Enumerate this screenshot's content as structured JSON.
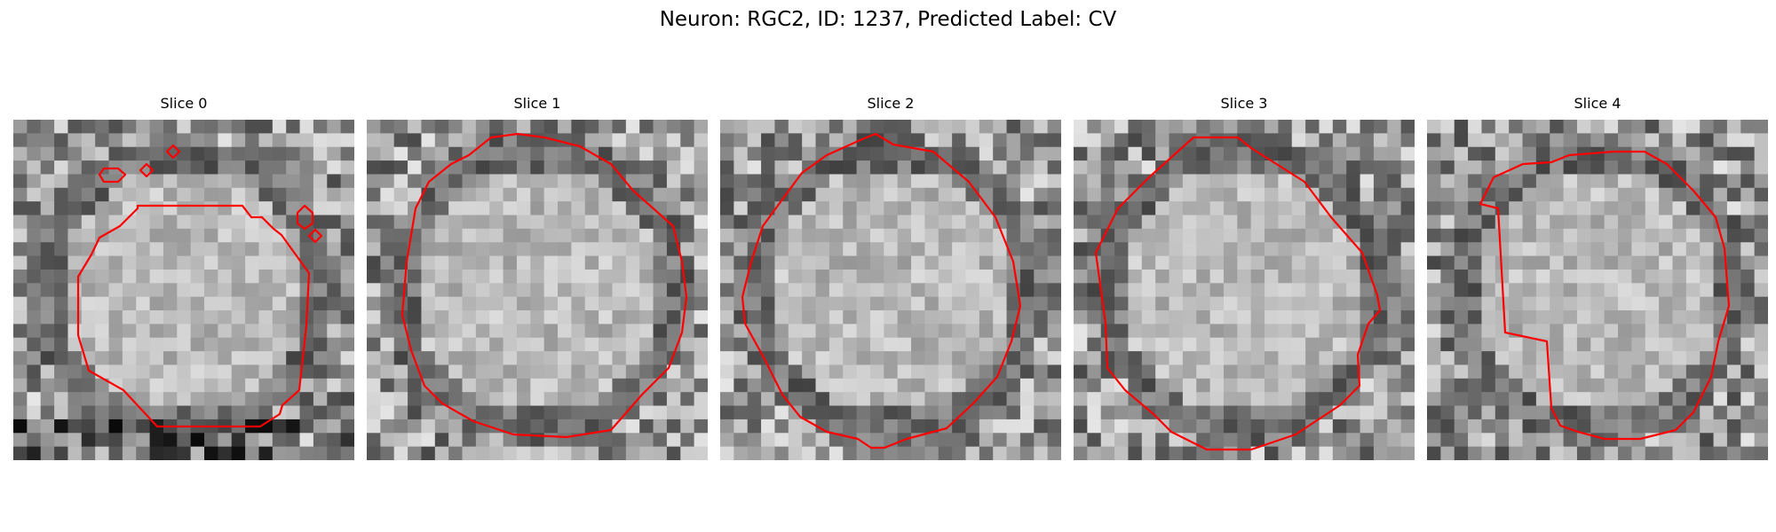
{
  "figure": {
    "title": "Neuron: RGC2, ID: 1237, Predicted Label: CV"
  },
  "slices": [
    {
      "title": "Slice 0",
      "outline_color": "#ff0000"
    },
    {
      "title": "Slice 1",
      "outline_color": "#ff0000"
    },
    {
      "title": "Slice 2",
      "outline_color": "#ff0000"
    },
    {
      "title": "Slice 3",
      "outline_color": "#ff0000"
    },
    {
      "title": "Slice 4",
      "outline_color": "#ff0000"
    }
  ]
}
